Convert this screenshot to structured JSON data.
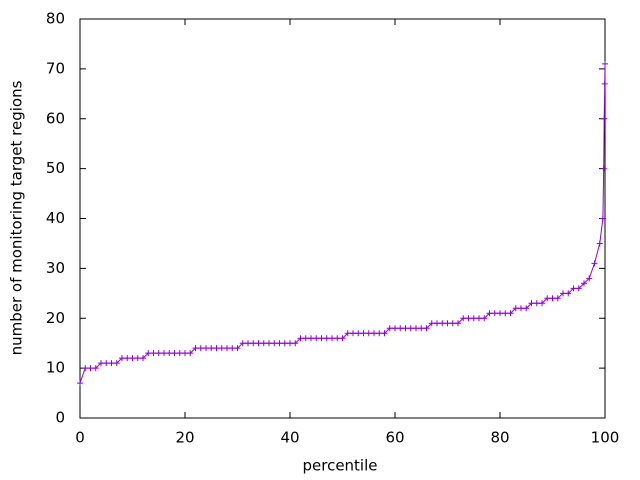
{
  "chart_data": {
    "type": "line",
    "xlabel": "percentile",
    "ylabel": "number of monitoring target regions",
    "x": [
      0,
      1,
      2,
      3,
      4,
      5,
      6,
      7,
      8,
      9,
      10,
      11,
      12,
      13,
      14,
      15,
      16,
      17,
      18,
      19,
      20,
      21,
      22,
      23,
      24,
      25,
      26,
      27,
      28,
      29,
      30,
      31,
      32,
      33,
      34,
      35,
      36,
      37,
      38,
      39,
      40,
      41,
      42,
      43,
      44,
      45,
      46,
      47,
      48,
      49,
      50,
      51,
      52,
      53,
      54,
      55,
      56,
      57,
      58,
      59,
      60,
      61,
      62,
      63,
      64,
      65,
      66,
      67,
      68,
      69,
      70,
      71,
      72,
      73,
      74,
      75,
      76,
      77,
      78,
      79,
      80,
      81,
      82,
      83,
      84,
      85,
      86,
      87,
      88,
      89,
      90,
      91,
      92,
      93,
      94,
      95,
      96,
      97,
      98,
      99,
      99.6,
      99.75,
      99.85,
      99.95,
      100
    ],
    "series": [
      {
        "color": "#9400d3",
        "values": [
          7,
          10,
          10,
          10,
          11,
          11,
          11,
          11,
          12,
          12,
          12,
          12,
          12,
          13,
          13,
          13,
          13,
          13,
          13,
          13,
          13,
          13,
          14,
          14,
          14,
          14,
          14,
          14,
          14,
          14,
          14,
          15,
          15,
          15,
          15,
          15,
          15,
          15,
          15,
          15,
          15,
          15,
          16,
          16,
          16,
          16,
          16,
          16,
          16,
          16,
          16,
          17,
          17,
          17,
          17,
          17,
          17,
          17,
          17,
          18,
          18,
          18,
          18,
          18,
          18,
          18,
          18,
          19,
          19,
          19,
          19,
          19,
          19,
          20,
          20,
          20,
          20,
          20,
          21,
          21,
          21,
          21,
          21,
          22,
          22,
          22,
          23,
          23,
          23,
          24,
          24,
          24,
          25,
          25,
          26,
          26,
          27,
          28,
          31,
          35,
          40,
          50,
          60,
          67,
          71
        ]
      }
    ],
    "xlim": [
      0,
      100
    ],
    "ylim": [
      0,
      80
    ],
    "xticks": [
      0,
      20,
      40,
      60,
      80,
      100
    ],
    "yticks": [
      0,
      10,
      20,
      30,
      40,
      50,
      60,
      70,
      80
    ]
  }
}
